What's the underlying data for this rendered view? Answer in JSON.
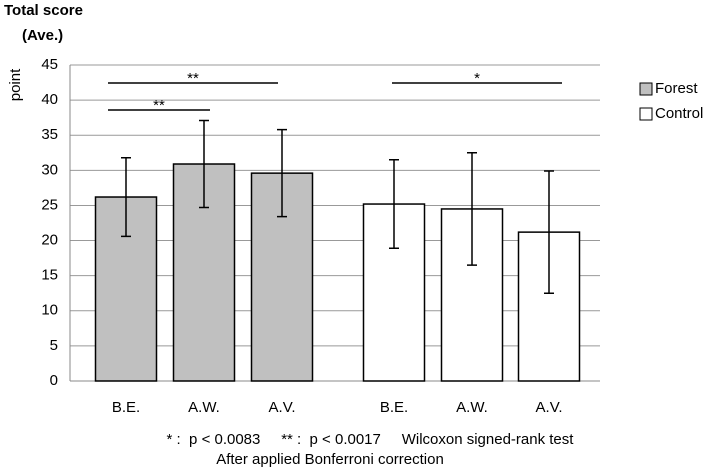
{
  "chart_data": {
    "type": "bar",
    "title": "Total score",
    "subtitle": "(Ave.)",
    "y_label": "point",
    "categories": [
      "B.E.",
      "A.W.",
      "A.V.",
      "B.E.",
      "A.W.",
      "A.V."
    ],
    "series": [
      {
        "name": "Forest",
        "color": "#c0c0c0",
        "values": [
          26.2,
          30.9,
          29.6,
          null,
          null,
          null
        ],
        "errors": [
          5.6,
          6.2,
          6.2,
          null,
          null,
          null
        ]
      },
      {
        "name": "Control",
        "color": "#ffffff",
        "values": [
          null,
          null,
          null,
          25.2,
          24.5,
          21.2
        ],
        "errors": [
          null,
          null,
          null,
          6.3,
          8.0,
          8.7
        ]
      }
    ],
    "ylim": [
      0,
      45
    ],
    "yticks": [
      0,
      5,
      10,
      15,
      20,
      25,
      30,
      35,
      40,
      45
    ],
    "grid": true,
    "legend": "right",
    "annotations": [
      "**",
      "**",
      "*"
    ],
    "notes": [
      "* :  p < 0.0083     ** :  p < 0.0017     Wilcoxon signed-rank test",
      "After applied Bonferroni correction"
    ]
  }
}
